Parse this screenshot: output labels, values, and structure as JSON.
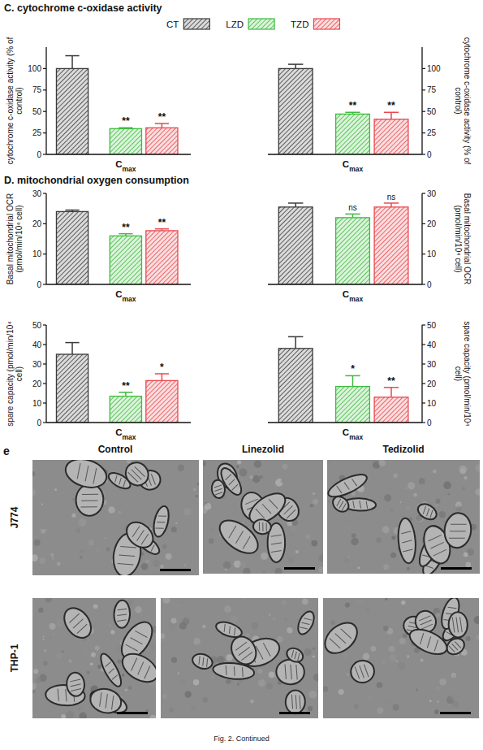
{
  "chart_data": [
    {
      "type": "bar",
      "categories": [
        "Cmax"
      ],
      "ylabel": "cytochrome c-oxidase activity (% of control)",
      "ylim": [
        0,
        125
      ],
      "yticks": [
        0,
        25,
        50,
        75,
        100
      ],
      "series": [
        {
          "name": "CT",
          "color": "#3a3a3a",
          "values": [
            100
          ],
          "errors": [
            15
          ]
        },
        {
          "name": "LZD",
          "color": "#3dbb3d",
          "values": [
            30
          ],
          "errors": [
            1
          ],
          "annotations": [
            "**"
          ]
        },
        {
          "name": "TZD",
          "color": "#e8484f",
          "values": [
            31
          ],
          "errors": [
            5
          ],
          "annotations": [
            "**"
          ]
        }
      ]
    },
    {
      "type": "bar",
      "categories": [
        "Cmax"
      ],
      "ylabel": "cytochrome c-oxidase activity (% of control)",
      "ylim": [
        0,
        125
      ],
      "yticks": [
        0,
        25,
        50,
        75,
        100
      ],
      "series": [
        {
          "color": "#3a3a3a",
          "values": [
            100
          ],
          "errors": [
            5
          ]
        },
        {
          "color": "#3dbb3d",
          "values": [
            47
          ],
          "errors": [
            2
          ],
          "annotations": [
            "**"
          ]
        },
        {
          "color": "#e8484f",
          "values": [
            41
          ],
          "errors": [
            8
          ],
          "annotations": [
            "**"
          ]
        }
      ]
    },
    {
      "type": "bar",
      "categories": [
        "Cmax"
      ],
      "ylabel": "Basal mitochondrial OCR (pmol/min/10⁴ cell)",
      "ylim": [
        0,
        30
      ],
      "yticks": [
        0,
        10,
        20,
        30
      ],
      "series": [
        {
          "color": "#3a3a3a",
          "values": [
            24
          ],
          "errors": [
            0.5
          ]
        },
        {
          "color": "#3dbb3d",
          "values": [
            16
          ],
          "errors": [
            0.7
          ],
          "annotations": [
            "**"
          ]
        },
        {
          "color": "#e8484f",
          "values": [
            17.7
          ],
          "errors": [
            0.6
          ],
          "annotations": [
            "**"
          ]
        }
      ]
    },
    {
      "type": "bar",
      "categories": [
        "Cmax"
      ],
      "ylabel": "Basal mitochondrial OCR (pmol/min/10⁴ cell)",
      "ylim": [
        0,
        30
      ],
      "yticks": [
        0,
        10,
        20,
        30
      ],
      "series": [
        {
          "color": "#3a3a3a",
          "values": [
            25.5
          ],
          "errors": [
            1.3
          ]
        },
        {
          "color": "#3dbb3d",
          "values": [
            22
          ],
          "errors": [
            1.2
          ],
          "annotations": [
            "ns"
          ]
        },
        {
          "color": "#e8484f",
          "values": [
            25.5
          ],
          "errors": [
            1.3
          ],
          "annotations": [
            "ns"
          ]
        }
      ]
    },
    {
      "type": "bar",
      "categories": [
        "Cmax"
      ],
      "ylabel": "spare capacity (pmol/min/10⁴ cell)",
      "ylim": [
        0,
        50
      ],
      "yticks": [
        0,
        10,
        20,
        30,
        40,
        50
      ],
      "series": [
        {
          "color": "#3a3a3a",
          "values": [
            35
          ],
          "errors": [
            6
          ]
        },
        {
          "color": "#3dbb3d",
          "values": [
            13.5
          ],
          "errors": [
            2
          ],
          "annotations": [
            "**"
          ]
        },
        {
          "color": "#e8484f",
          "values": [
            21.5
          ],
          "errors": [
            3.5
          ],
          "annotations": [
            "*"
          ]
        }
      ]
    },
    {
      "type": "bar",
      "categories": [
        "Cmax"
      ],
      "ylabel": "spare capacity (pmol/min/10⁴ cell)",
      "ylim": [
        0,
        50
      ],
      "yticks": [
        0,
        10,
        20,
        30,
        40,
        50
      ],
      "series": [
        {
          "color": "#3a3a3a",
          "values": [
            38
          ],
          "errors": [
            6
          ]
        },
        {
          "color": "#3dbb3d",
          "values": [
            18.5
          ],
          "errors": [
            5.5
          ],
          "annotations": [
            "*"
          ]
        },
        {
          "color": "#e8484f",
          "values": [
            13
          ],
          "errors": [
            5
          ],
          "annotations": [
            "**"
          ]
        }
      ]
    }
  ],
  "sections": [
    "C. cytochrome c-oxidase activity",
    "D. mitochondrial oxygen consumption"
  ],
  "micrographs": {
    "panel": "e",
    "columns": [
      "Control",
      "Linezolid",
      "Tedizolid"
    ],
    "rows": [
      "J774",
      "THP-1"
    ]
  },
  "caption": "Fig. 2. Continued"
}
